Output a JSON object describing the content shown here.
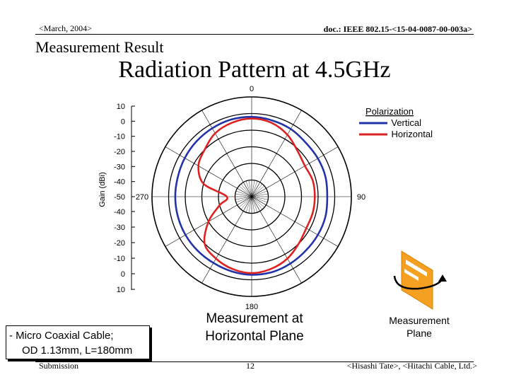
{
  "header": {
    "left": "<March, 2004>",
    "right": "doc.: IEEE 802.15-<15-04-0087-00-003a>"
  },
  "subtitle": "Measurement Result",
  "title": "Radiation Pattern at 4.5GHz",
  "chart_data": {
    "type": "polar",
    "radial_axis": {
      "label": "Gain (dBi)",
      "range": [
        -50,
        10
      ],
      "ticks_upper": [
        "10",
        "0",
        "-10",
        "-20",
        "-30",
        "-40",
        "-50"
      ],
      "ticks_lower": [
        "-40",
        "-30",
        "-20",
        "-10",
        "0",
        "10"
      ]
    },
    "angle_labels": [
      "0",
      "90",
      "180",
      "270"
    ],
    "grid": true,
    "legend": {
      "title": "Polarization",
      "placement": "top-right"
    },
    "series": [
      {
        "name": "Vertical",
        "color": "#2233aa",
        "angles_deg": [
          0,
          15,
          30,
          45,
          60,
          75,
          90,
          105,
          120,
          135,
          150,
          165,
          180,
          195,
          210,
          225,
          240,
          255,
          270,
          285,
          300,
          315,
          330,
          345
        ],
        "gain_dbi": [
          -2,
          -2.5,
          -3,
          -4,
          -4,
          -4,
          -4.5,
          -4,
          -4,
          -4,
          -3.5,
          -3,
          -3,
          -3.5,
          -4,
          -4,
          -4,
          -4,
          -4,
          -4,
          -3.5,
          -3,
          -2.5,
          -2
        ]
      },
      {
        "name": "Horizontal",
        "color": "#dd2222",
        "angles_deg": [
          0,
          15,
          30,
          45,
          60,
          75,
          90,
          105,
          120,
          135,
          150,
          165,
          180,
          195,
          210,
          225,
          240,
          255,
          270,
          285,
          300,
          315,
          330,
          345
        ],
        "gain_dbi": [
          -3,
          -4,
          -7,
          -11,
          -13,
          -12,
          -12,
          -12,
          -12,
          -10,
          -7,
          -5,
          -4,
          -5,
          -7,
          -10,
          -20,
          -30,
          -35,
          -20,
          -13,
          -10,
          -6,
          -4
        ]
      }
    ]
  },
  "cable_note": [
    "- Micro Coaxial Cable;",
    "OD 1.13mm, L=180mm"
  ],
  "measurement_caption": [
    "Measurement at",
    "Horizontal Plane"
  ],
  "plane_caption": [
    "Measurement",
    "Plane"
  ],
  "footer": {
    "left": "Submission",
    "center": "12",
    "right": "<Hisashi Tate>, <Hitachi Cable, Ltd.>"
  }
}
